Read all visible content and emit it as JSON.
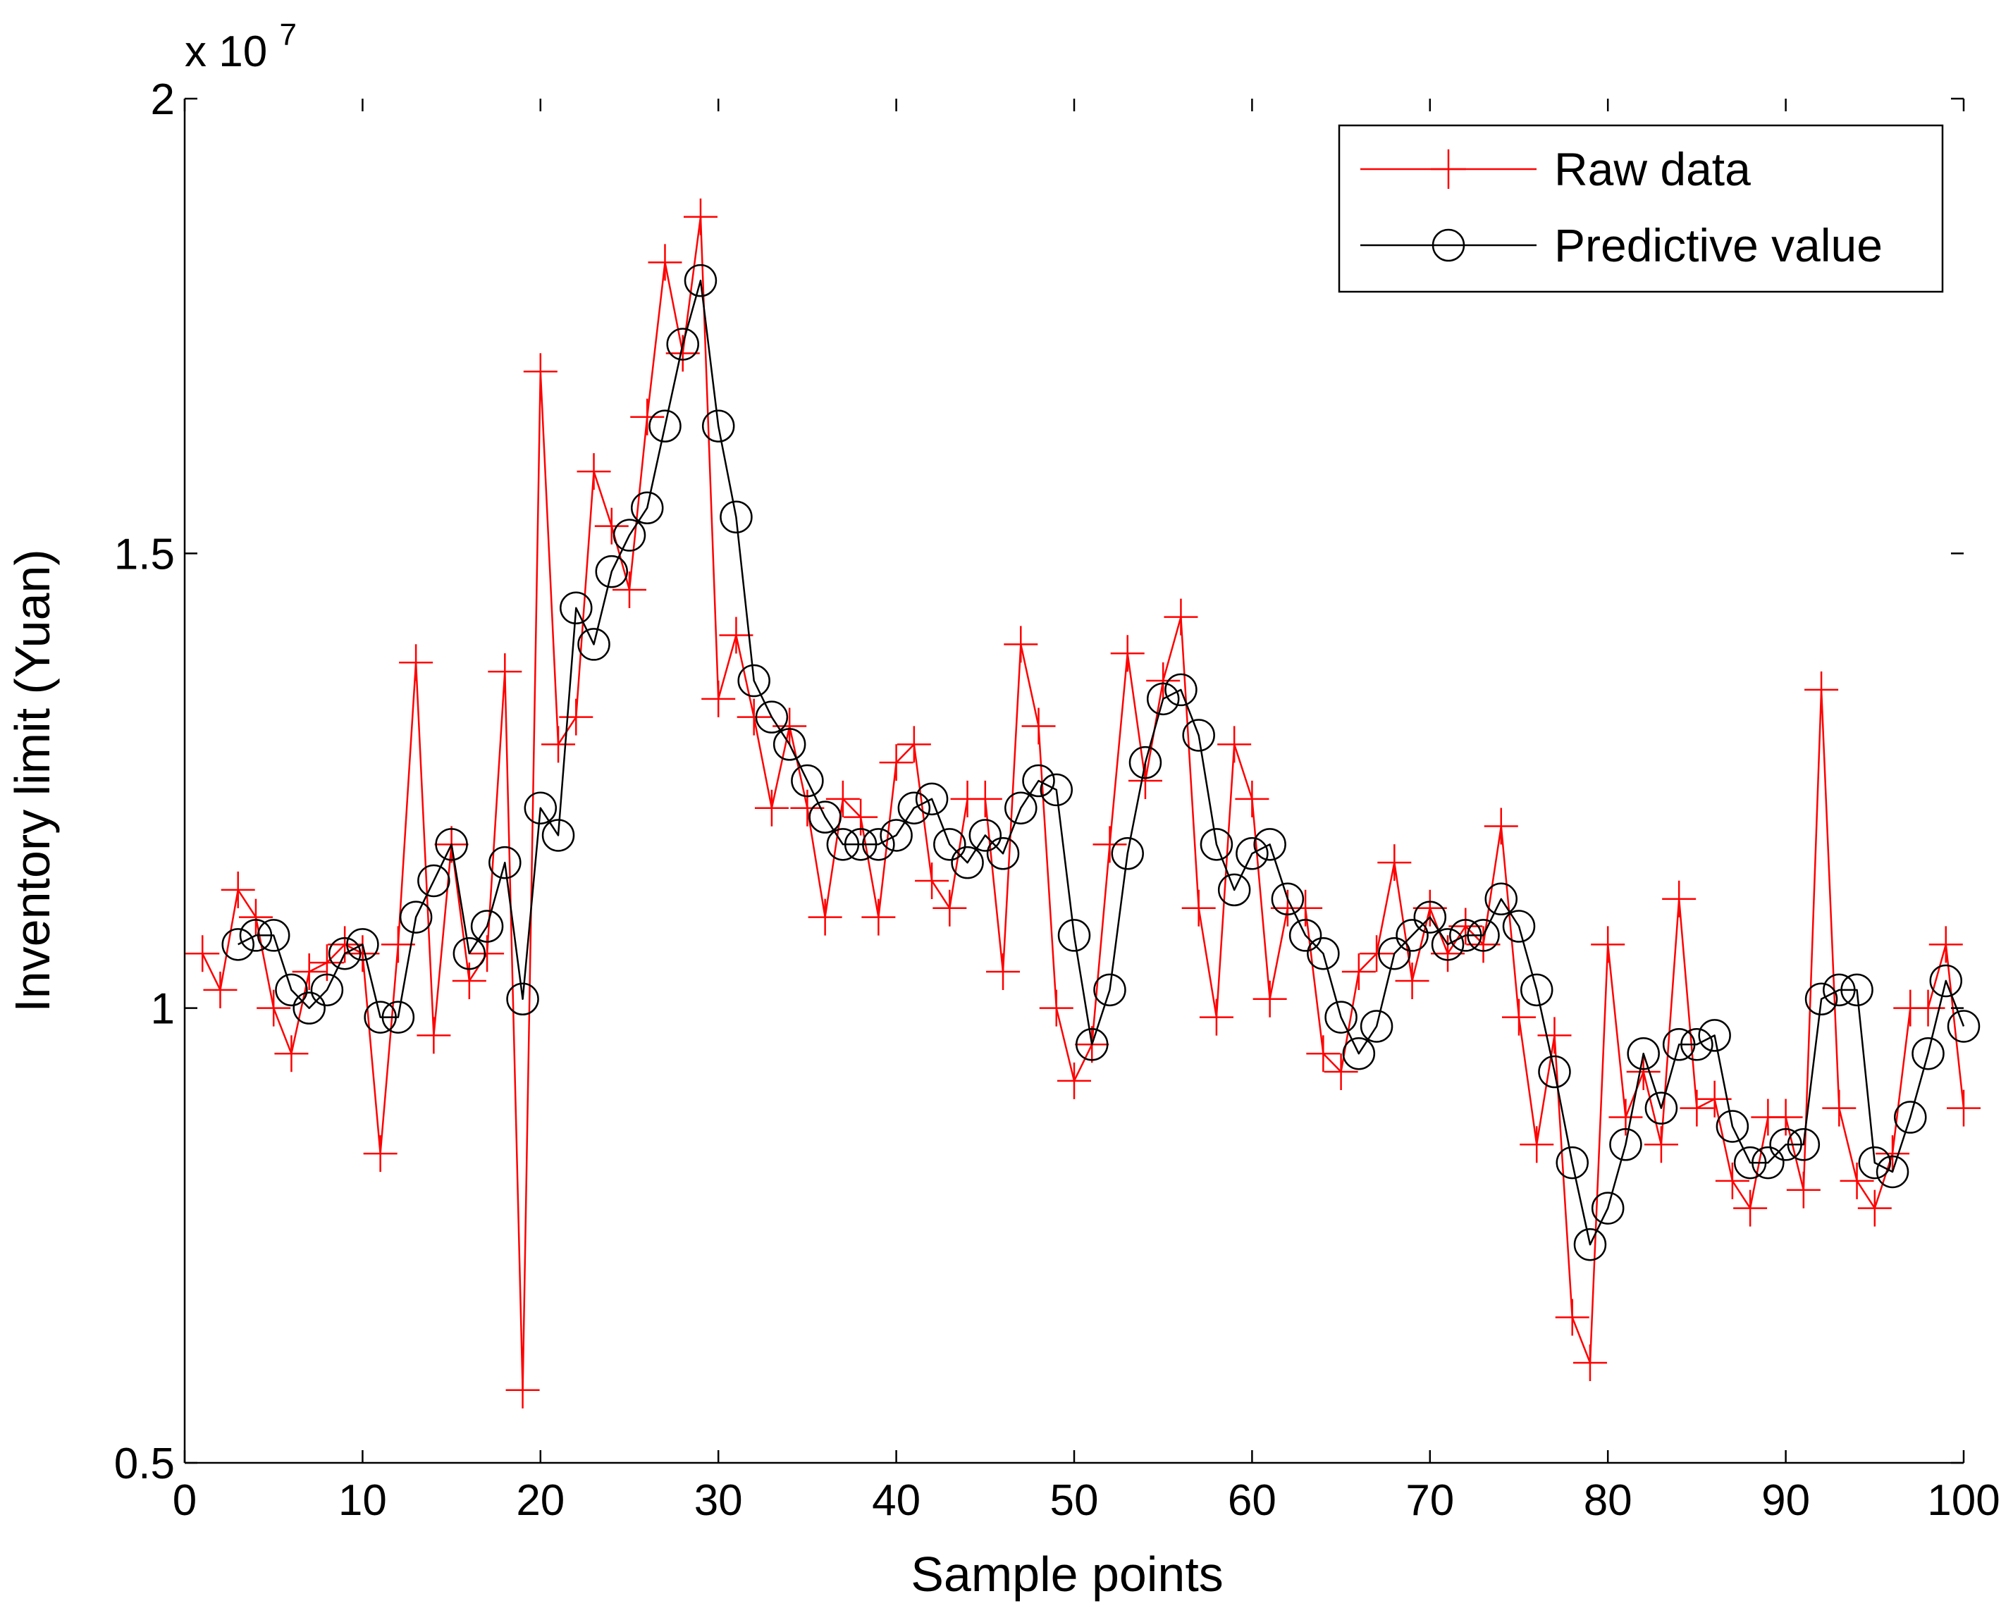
{
  "chart_data": {
    "type": "line",
    "xlabel": "Sample points",
    "ylabel": "Inventory limit (Yuan)",
    "y_multiplier": "x 10",
    "y_multiplier_exponent": "7",
    "xlim": [
      0,
      100
    ],
    "ylim": [
      0.5,
      2.0
    ],
    "x_ticks": [
      0,
      10,
      20,
      30,
      40,
      50,
      60,
      70,
      80,
      90,
      100
    ],
    "x_tick_labels": [
      "0",
      "10",
      "20",
      "30",
      "40",
      "50",
      "60",
      "70",
      "80",
      "90",
      "100"
    ],
    "y_ticks": [
      0.5,
      1.0,
      1.5,
      2.0
    ],
    "y_tick_labels": [
      "0.5",
      "1",
      "1.5",
      "2"
    ],
    "grid": false,
    "legend_position": "top-right",
    "series": [
      {
        "name": "Raw data",
        "color": "#ff0000",
        "marker": "plus",
        "x": [
          1,
          2,
          3,
          4,
          5,
          6,
          7,
          8,
          9,
          10,
          11,
          12,
          13,
          14,
          15,
          16,
          17,
          18,
          19,
          20,
          21,
          22,
          23,
          24,
          25,
          26,
          27,
          28,
          29,
          30,
          31,
          32,
          33,
          34,
          35,
          36,
          37,
          38,
          39,
          40,
          41,
          42,
          43,
          44,
          45,
          46,
          47,
          48,
          49,
          50,
          51,
          52,
          53,
          54,
          55,
          56,
          57,
          58,
          59,
          60,
          61,
          62,
          63,
          64,
          65,
          66,
          67,
          68,
          69,
          70,
          71,
          72,
          73,
          74,
          75,
          76,
          77,
          78,
          79,
          80,
          81,
          82,
          83,
          84,
          85,
          86,
          87,
          88,
          89,
          90,
          91,
          92,
          93,
          94,
          95,
          96,
          97,
          98,
          99,
          100
        ],
        "values": [
          1.06,
          1.02,
          1.13,
          1.1,
          1.0,
          0.95,
          1.04,
          1.05,
          1.07,
          1.06,
          0.84,
          1.07,
          1.38,
          0.97,
          1.18,
          1.03,
          1.06,
          1.37,
          0.58,
          1.7,
          1.29,
          1.32,
          1.59,
          1.53,
          1.46,
          1.65,
          1.82,
          1.72,
          1.87,
          1.34,
          1.41,
          1.32,
          1.22,
          1.31,
          1.22,
          1.1,
          1.23,
          1.21,
          1.1,
          1.27,
          1.29,
          1.14,
          1.11,
          1.23,
          1.23,
          1.04,
          1.4,
          1.31,
          1.0,
          0.92,
          0.96,
          1.18,
          1.39,
          1.25,
          1.36,
          1.43,
          1.11,
          0.99,
          1.29,
          1.23,
          1.01,
          1.11,
          1.11,
          0.95,
          0.93,
          1.04,
          1.06,
          1.16,
          1.03,
          1.11,
          1.06,
          1.09,
          1.07,
          1.2,
          0.99,
          0.85,
          0.97,
          0.66,
          0.61,
          1.07,
          0.88,
          0.93,
          0.85,
          1.12,
          0.89,
          0.9,
          0.81,
          0.78,
          0.88,
          0.88,
          0.8,
          1.35,
          0.89,
          0.81,
          0.78,
          0.84,
          1.0,
          1.0,
          1.07,
          0.89
        ]
      },
      {
        "name": "Predictive value",
        "color": "#000000",
        "marker": "circle",
        "x": [
          3,
          4,
          5,
          6,
          7,
          8,
          9,
          10,
          11,
          12,
          13,
          14,
          15,
          16,
          17,
          18,
          19,
          20,
          21,
          22,
          23,
          24,
          25,
          26,
          27,
          28,
          29,
          30,
          31,
          32,
          33,
          34,
          35,
          36,
          37,
          38,
          39,
          40,
          41,
          42,
          43,
          44,
          45,
          46,
          47,
          48,
          49,
          50,
          51,
          52,
          53,
          54,
          55,
          56,
          57,
          58,
          59,
          60,
          61,
          62,
          63,
          64,
          65,
          66,
          67,
          68,
          69,
          70,
          71,
          72,
          73,
          74,
          75,
          76,
          77,
          78,
          79,
          80,
          81,
          82,
          83,
          84,
          85,
          86,
          87,
          88,
          89,
          90,
          91,
          92,
          93,
          94,
          95,
          96,
          97,
          98,
          99,
          100
        ],
        "values": [
          1.07,
          1.08,
          1.08,
          1.02,
          1.0,
          1.02,
          1.06,
          1.07,
          0.99,
          0.99,
          1.1,
          1.14,
          1.18,
          1.06,
          1.09,
          1.16,
          1.01,
          1.22,
          1.19,
          1.44,
          1.4,
          1.48,
          1.52,
          1.55,
          1.64,
          1.73,
          1.8,
          1.64,
          1.54,
          1.36,
          1.32,
          1.29,
          1.25,
          1.21,
          1.18,
          1.18,
          1.18,
          1.19,
          1.22,
          1.23,
          1.18,
          1.16,
          1.19,
          1.17,
          1.22,
          1.25,
          1.24,
          1.08,
          0.96,
          1.02,
          1.17,
          1.27,
          1.34,
          1.35,
          1.3,
          1.18,
          1.13,
          1.17,
          1.18,
          1.12,
          1.08,
          1.06,
          0.99,
          0.95,
          0.98,
          1.06,
          1.08,
          1.1,
          1.07,
          1.08,
          1.08,
          1.12,
          1.09,
          1.02,
          0.93,
          0.83,
          0.74,
          0.78,
          0.85,
          0.95,
          0.89,
          0.96,
          0.96,
          0.97,
          0.87,
          0.83,
          0.83,
          0.85,
          0.85,
          1.01,
          1.02,
          1.02,
          0.83,
          0.82,
          0.88,
          0.95,
          1.03,
          0.98
        ]
      }
    ]
  }
}
